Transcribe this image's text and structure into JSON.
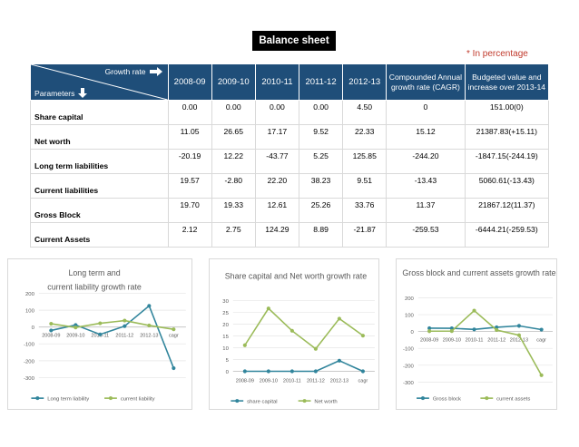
{
  "title": "Balance sheet",
  "note": "* In percentage",
  "table": {
    "corner_top": "Growth rate",
    "corner_bottom": "Parameters",
    "headers": [
      "2008-09",
      "2009-10",
      "2010-11",
      "2011-12",
      "2012-13",
      "Compounded Annual growth rate (CAGR)",
      "Budgeted value and increase over 2013-14"
    ],
    "rows": [
      {
        "label": "Share capital",
        "values": [
          "0.00",
          "0.00",
          "0.00",
          "0.00",
          "4.50",
          "0",
          "151.00(0)"
        ]
      },
      {
        "label": "Net worth",
        "values": [
          "11.05",
          "26.65",
          "17.17",
          "9.52",
          "22.33",
          "15.12",
          "21387.83(+15.11)"
        ]
      },
      {
        "label": "Long term liabilities",
        "values": [
          "-20.19",
          "12.22",
          "-43.77",
          "5.25",
          "125.85",
          "-244.20",
          "-1847.15(-244.19)"
        ]
      },
      {
        "label": "Current liabilities",
        "values": [
          "19.57",
          "-2.80",
          "22.20",
          "38.23",
          "9.51",
          "-13.43",
          "5060.61(-13.43)"
        ]
      },
      {
        "label": "Gross Block",
        "values": [
          "19.70",
          "19.33",
          "12.61",
          "25.26",
          "33.76",
          "11.37",
          "21867.12(11.37)"
        ]
      },
      {
        "label": "Current Assets",
        "values": [
          "2.12",
          "2.75",
          "124.29",
          "8.89",
          "-21.87",
          "-259.53",
          "-6444.21(-259.53)"
        ]
      }
    ]
  },
  "colors": {
    "header_bg": "#1f4e79",
    "series_blue": "#31859c",
    "series_green": "#9bbb59"
  },
  "chart_data": [
    {
      "type": "line",
      "title": "Long term and current liability growth rate",
      "categories": [
        "2008-09",
        "2009-10",
        "2010-11",
        "2011-12",
        "2012-13",
        "cagr"
      ],
      "ylim": [
        -300,
        200
      ],
      "yticks": [
        200,
        100,
        0,
        -100,
        -200,
        -300
      ],
      "series": [
        {
          "name": "Long term liability",
          "values": [
            -20.19,
            12.22,
            -43.77,
            5.25,
            125.85,
            -244.2
          ]
        },
        {
          "name": "current liability",
          "values": [
            19.57,
            -2.8,
            22.2,
            38.23,
            9.51,
            -13.43
          ]
        }
      ]
    },
    {
      "type": "line",
      "title": "Share capital and Net worth growth rate",
      "categories": [
        "2008-09",
        "2009-10",
        "2010-11",
        "2011-12",
        "2012-13",
        "cagr"
      ],
      "ylim": [
        0,
        30
      ],
      "yticks": [
        30,
        25,
        20,
        15,
        10,
        5,
        0
      ],
      "series": [
        {
          "name": "share capital",
          "values": [
            0,
            0,
            0,
            0,
            4.5,
            0
          ]
        },
        {
          "name": "Net worth",
          "values": [
            11.05,
            26.65,
            17.17,
            9.52,
            22.33,
            15.12
          ]
        }
      ]
    },
    {
      "type": "line",
      "title": "Gross block and current assets growth rate",
      "categories": [
        "2008-09",
        "2009-10",
        "2010-11",
        "2011-12",
        "2012-13",
        "cagr"
      ],
      "ylim": [
        -300,
        200
      ],
      "yticks": [
        200,
        100,
        0,
        -100,
        -200,
        -300
      ],
      "series": [
        {
          "name": "Gross block",
          "values": [
            19.7,
            19.33,
            12.61,
            25.26,
            33.76,
            11.37
          ]
        },
        {
          "name": "current assets",
          "values": [
            2.12,
            2.75,
            124.29,
            8.89,
            -21.87,
            -259.53
          ]
        }
      ]
    }
  ]
}
